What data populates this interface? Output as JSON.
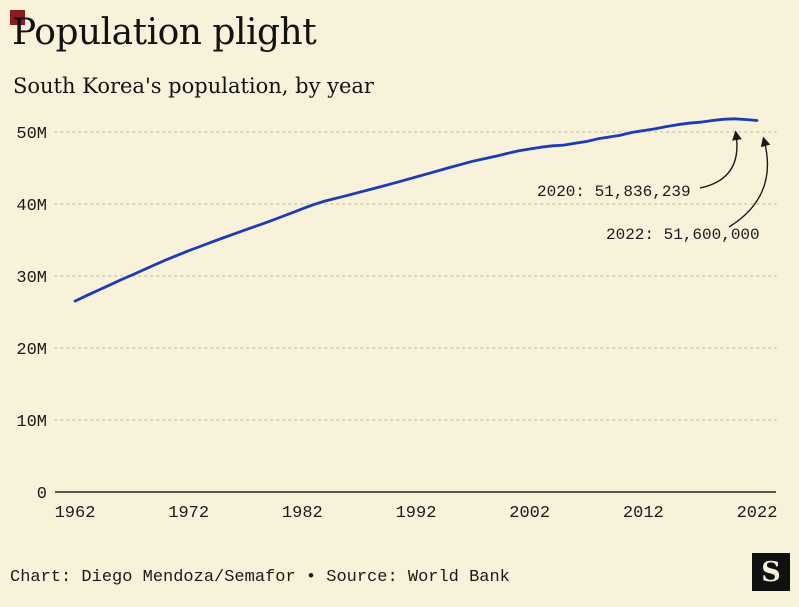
{
  "brand": {
    "accent_color": "#8c1b1b",
    "background_color": "#f7f2d9",
    "logo_letter": "S"
  },
  "header": {
    "title": "Population plight",
    "subtitle": "South Korea's population, by year"
  },
  "footer": {
    "credit": "Chart: Diego Mendoza/Semafor • Source: World Bank"
  },
  "chart_data": {
    "type": "line",
    "title": "Population plight",
    "subtitle": "South Korea's population, by year",
    "line_color": "#1c3bb5",
    "grid": "dotted horizontal gridlines, solid zero axis",
    "legend": "none",
    "y_unit": "millions of people",
    "ylim": [
      0,
      55
    ],
    "x": [
      1962,
      1963,
      1964,
      1965,
      1966,
      1967,
      1968,
      1969,
      1970,
      1971,
      1972,
      1973,
      1974,
      1975,
      1976,
      1977,
      1978,
      1979,
      1980,
      1981,
      1982,
      1983,
      1984,
      1985,
      1986,
      1987,
      1988,
      1989,
      1990,
      1991,
      1992,
      1993,
      1994,
      1995,
      1996,
      1997,
      1998,
      1999,
      2000,
      2001,
      2002,
      2003,
      2004,
      2005,
      2006,
      2007,
      2008,
      2009,
      2010,
      2011,
      2012,
      2013,
      2014,
      2015,
      2016,
      2017,
      2018,
      2019,
      2020,
      2021,
      2022
    ],
    "series": [
      {
        "name": "South Korea population (millions)",
        "values": [
          26.51,
          27.26,
          27.98,
          28.71,
          29.44,
          30.13,
          30.84,
          31.54,
          32.24,
          32.88,
          33.51,
          34.1,
          34.69,
          35.28,
          35.85,
          36.41,
          36.97,
          37.53,
          38.12,
          38.72,
          39.33,
          39.91,
          40.41,
          40.81,
          41.21,
          41.62,
          42.03,
          42.45,
          42.87,
          43.3,
          43.75,
          44.19,
          44.64,
          45.09,
          45.52,
          45.95,
          46.29,
          46.62,
          47.01,
          47.37,
          47.64,
          47.89,
          48.08,
          48.18,
          48.44,
          48.68,
          49.05,
          49.31,
          49.55,
          49.94,
          50.2,
          50.43,
          50.75,
          51.01,
          51.22,
          51.36,
          51.59,
          51.76,
          51.84,
          51.74,
          51.6
        ]
      }
    ],
    "yticks": [
      {
        "value": 0,
        "label": "0"
      },
      {
        "value": 10,
        "label": "10M"
      },
      {
        "value": 20,
        "label": "20M"
      },
      {
        "value": 30,
        "label": "30M"
      },
      {
        "value": 40,
        "label": "40M"
      },
      {
        "value": 50,
        "label": "50M"
      }
    ],
    "xticks": [
      1962,
      1972,
      1982,
      1992,
      2002,
      2012,
      2022
    ],
    "annotations": [
      {
        "label": "2020: 51,836,239",
        "year": 2020,
        "value_millions": 51.836239
      },
      {
        "label": "2022: 51,600,000",
        "year": 2022,
        "value_millions": 51.6
      }
    ]
  }
}
